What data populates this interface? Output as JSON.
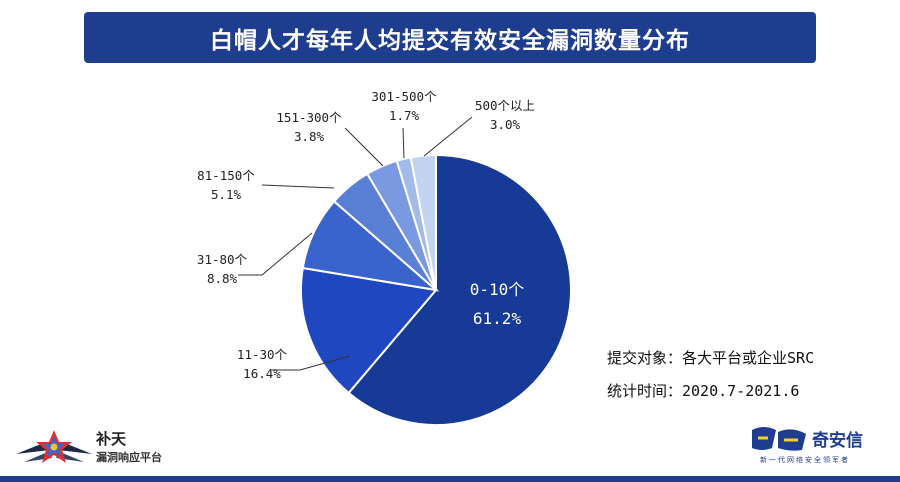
{
  "header": {
    "title": "白帽人才每年人均提交有效安全漏洞数量分布"
  },
  "chart_data": {
    "type": "pie",
    "title": "白帽人才每年人均提交有效安全漏洞数量分布",
    "start_angle_deg": 0,
    "direction": "clockwise",
    "slices": [
      {
        "label": "0-10个",
        "value": 61.2,
        "display": "61.2%",
        "color": "#173a96"
      },
      {
        "label": "11-30个",
        "value": 16.4,
        "display": "16.4%",
        "color": "#1f48c0"
      },
      {
        "label": "31-80个",
        "value": 8.8,
        "display": "8.8%",
        "color": "#3a63cc"
      },
      {
        "label": "81-150个",
        "value": 5.1,
        "display": "5.1%",
        "color": "#5a80d6"
      },
      {
        "label": "151-300个",
        "value": 3.8,
        "display": "3.8%",
        "color": "#7a99e0"
      },
      {
        "label": "301-500个",
        "value": 1.7,
        "display": "1.7%",
        "color": "#a3bbeb"
      },
      {
        "label": "500个以上",
        "value": 3.0,
        "display": "3.0%",
        "color": "#c3d3f2"
      }
    ]
  },
  "notes": {
    "target": "提交对象：各大平台或企业SRC",
    "period": "统计时间：2020.7-2021.6"
  },
  "logos": {
    "left_name": "补天",
    "left_subtitle": "漏洞响应平台",
    "right_name": "奇安信",
    "right_tagline": "新一代网络安全领军者"
  },
  "colors": {
    "accent": "#1f3d8f"
  }
}
